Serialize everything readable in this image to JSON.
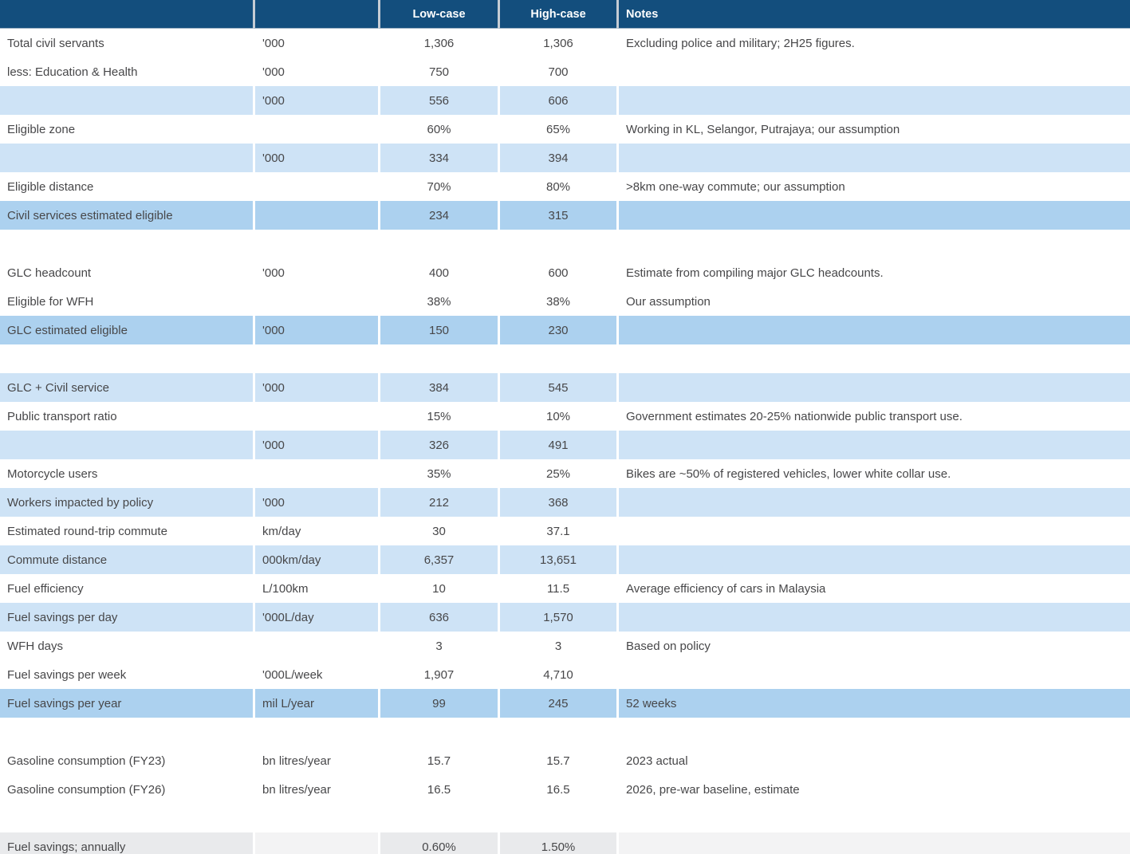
{
  "colors": {
    "header_bg": "#134e7d",
    "header_text": "#ffffff",
    "row_light_blue": "#cee3f6",
    "row_medium_blue": "#acd1ef",
    "row_gray": "#e9eaec",
    "body_text": "#474749"
  },
  "table": {
    "columns": [
      "",
      "",
      "Low-case",
      "High-case",
      "Notes"
    ],
    "rows": [
      {
        "style": "white",
        "label": "Total civil servants",
        "unit": "'000",
        "low": "1,306",
        "high": "1,306",
        "note": "Excluding police and military; 2H25 figures."
      },
      {
        "style": "white",
        "label": "less: Education & Health",
        "unit": "'000",
        "low": "750",
        "high": "700",
        "note": ""
      },
      {
        "style": "light",
        "label": "",
        "unit": "'000",
        "low": "556",
        "high": "606",
        "note": ""
      },
      {
        "style": "white",
        "label": "Eligible zone",
        "unit": "",
        "low": "60%",
        "high": "65%",
        "note": "Working in KL, Selangor, Putrajaya; our assumption"
      },
      {
        "style": "light",
        "label": "",
        "unit": "'000",
        "low": "334",
        "high": "394",
        "note": ""
      },
      {
        "style": "white",
        "label": "Eligible distance",
        "unit": "",
        "low": "70%",
        "high": "80%",
        "note": ">8km one-way commute; our assumption"
      },
      {
        "style": "medium",
        "label": "Civil services estimated eligible",
        "unit": "",
        "low": "234",
        "high": "315",
        "note": ""
      },
      {
        "style": "empty",
        "label": "",
        "unit": "",
        "low": "",
        "high": "",
        "note": ""
      },
      {
        "style": "white",
        "label": "GLC headcount",
        "unit": "'000",
        "low": "400",
        "high": "600",
        "note": "Estimate from compiling major GLC headcounts."
      },
      {
        "style": "white",
        "label": "Eligible for WFH",
        "unit": "",
        "low": "38%",
        "high": "38%",
        "note": "Our assumption"
      },
      {
        "style": "medium",
        "label": "GLC estimated eligible",
        "unit": "'000",
        "low": "150",
        "high": "230",
        "note": ""
      },
      {
        "style": "empty",
        "label": "",
        "unit": "",
        "low": "",
        "high": "",
        "note": ""
      },
      {
        "style": "light",
        "label": "GLC + Civil service",
        "unit": "'000",
        "low": "384",
        "high": "545",
        "note": ""
      },
      {
        "style": "white",
        "label": "Public transport ratio",
        "unit": "",
        "low": "15%",
        "high": "10%",
        "note": "Government estimates 20-25% nationwide public transport use."
      },
      {
        "style": "light",
        "label": "",
        "unit": "'000",
        "low": "326",
        "high": "491",
        "note": ""
      },
      {
        "style": "white",
        "label": "Motorcycle users",
        "unit": "",
        "low": "35%",
        "high": "25%",
        "note": "Bikes are ~50% of registered vehicles, lower white collar use."
      },
      {
        "style": "light",
        "label": "Workers impacted by policy",
        "unit": "'000",
        "low": "212",
        "high": "368",
        "note": ""
      },
      {
        "style": "white",
        "label": "Estimated round-trip commute",
        "unit": "km/day",
        "low": "30",
        "high": "37.1",
        "note": ""
      },
      {
        "style": "light",
        "label": "Commute distance",
        "unit": "000km/day",
        "low": "6,357",
        "high": "13,651",
        "note": ""
      },
      {
        "style": "white",
        "label": "Fuel efficiency",
        "unit": "L/100km",
        "low": "10",
        "high": "11.5",
        "note": "Average efficiency of cars in Malaysia"
      },
      {
        "style": "light",
        "label": "Fuel savings per day",
        "unit": "'000L/day",
        "low": "636",
        "high": "1,570",
        "note": ""
      },
      {
        "style": "white",
        "label": "WFH days",
        "unit": "",
        "low": "3",
        "high": "3",
        "note": "Based on policy"
      },
      {
        "style": "white",
        "label": "Fuel savings per week",
        "unit": "'000L/week",
        "low": "1,907",
        "high": "4,710",
        "note": ""
      },
      {
        "style": "medium",
        "label": "Fuel savings per year",
        "unit": "mil L/year",
        "low": "99",
        "high": "245",
        "note": "52 weeks"
      },
      {
        "style": "empty",
        "label": "",
        "unit": "",
        "low": "",
        "high": "",
        "note": ""
      },
      {
        "style": "white",
        "label": "Gasoline consumption (FY23)",
        "unit": "bn litres/year",
        "low": "15.7",
        "high": "15.7",
        "note": "2023 actual"
      },
      {
        "style": "white",
        "label": "Gasoline consumption (FY26)",
        "unit": "bn litres/year",
        "low": "16.5",
        "high": "16.5",
        "note": "2026, pre-war baseline, estimate"
      },
      {
        "style": "empty",
        "label": "",
        "unit": "",
        "low": "",
        "high": "",
        "note": ""
      },
      {
        "style": "gray",
        "label": "Fuel savings; annually",
        "unit": "",
        "low": "0.60%",
        "high": "1.50%",
        "note": ""
      }
    ]
  }
}
